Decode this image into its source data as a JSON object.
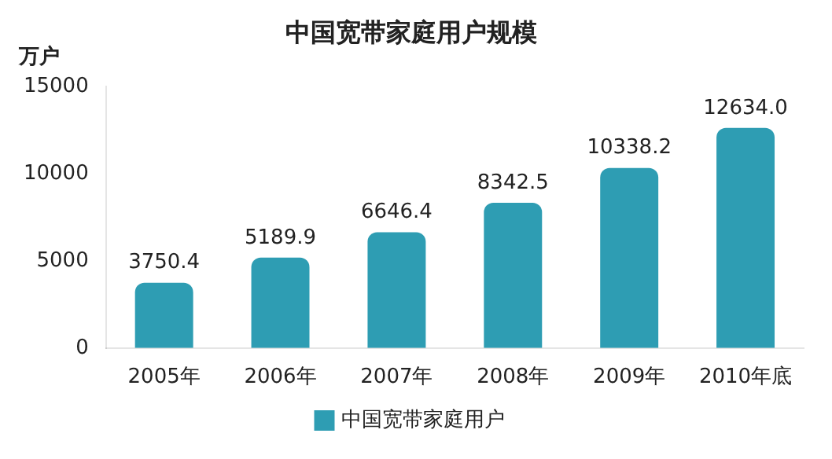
{
  "chart_data": {
    "type": "bar",
    "title": "中国宽带家庭用户规模",
    "ylabel": "万户",
    "categories": [
      "2005年",
      "2006年",
      "2007年",
      "2008年",
      "2009年",
      "2010年底"
    ],
    "series": [
      {
        "name": "中国宽带家庭用户",
        "color": "#2e9db3",
        "values": [
          3750.4,
          5189.9,
          6646.4,
          8342.5,
          10338.2,
          12634.0
        ]
      }
    ],
    "value_labels": [
      "3750.4",
      "5189.9",
      "6646.4",
      "8342.5",
      "10338.2",
      "12634.0"
    ],
    "ylim": [
      0,
      15000
    ],
    "yticks": [
      0,
      5000,
      10000,
      15000
    ],
    "grid": false,
    "legend": "bottom"
  }
}
